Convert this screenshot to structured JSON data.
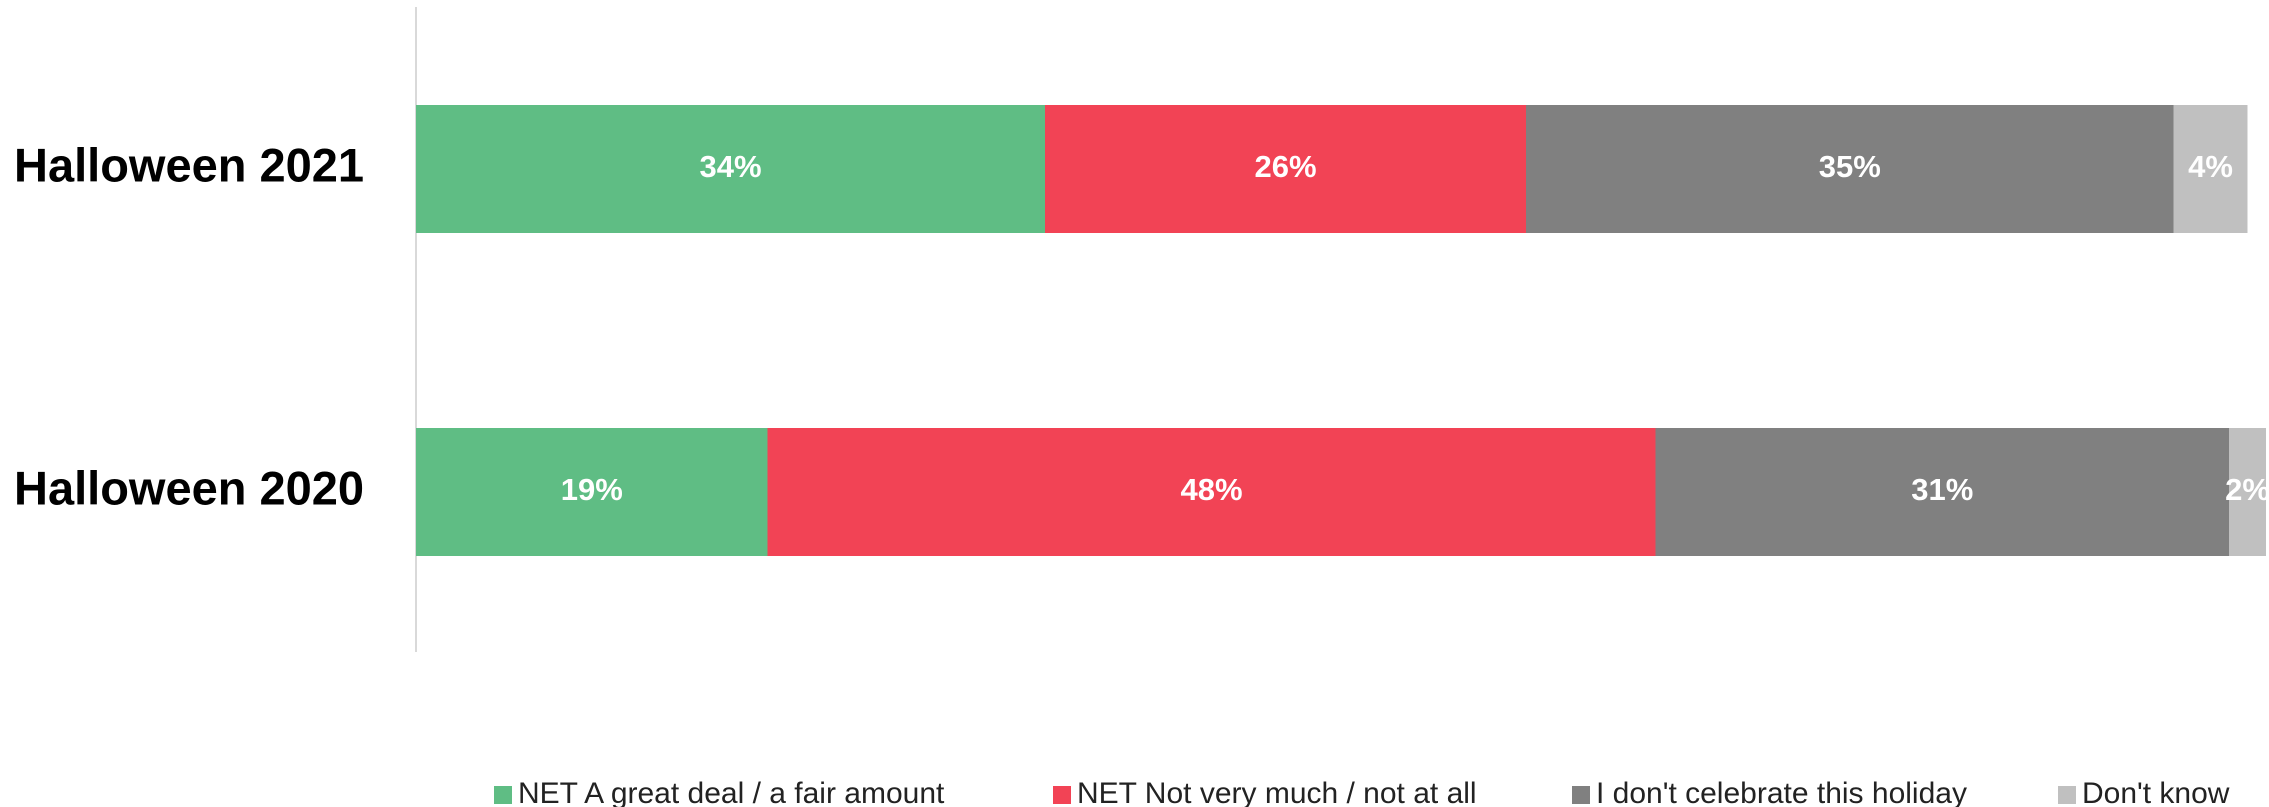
{
  "chart_data": {
    "type": "bar",
    "orientation": "horizontal",
    "stacked": true,
    "categories": [
      "Halloween 2021",
      "Halloween 2020"
    ],
    "series": [
      {
        "name": "NET A great deal / a fair amount",
        "color": "#5fbd84",
        "values": [
          34,
          19
        ],
        "value_labels": [
          "34%",
          "19%"
        ]
      },
      {
        "name": "NET Not very much / not at all",
        "color": "#f24355",
        "values": [
          26,
          48
        ],
        "value_labels": [
          "26%",
          "48%"
        ]
      },
      {
        "name": "I don't celebrate this holiday",
        "color": "#808080",
        "values": [
          35,
          31
        ],
        "value_labels": [
          "35%",
          "31%"
        ]
      },
      {
        "name": "Don't know",
        "color": "#c0c0c0",
        "values": [
          4,
          2
        ],
        "value_labels": [
          "4%",
          "2%"
        ]
      }
    ],
    "xlim": [
      0,
      100
    ],
    "legend": "bottom"
  }
}
